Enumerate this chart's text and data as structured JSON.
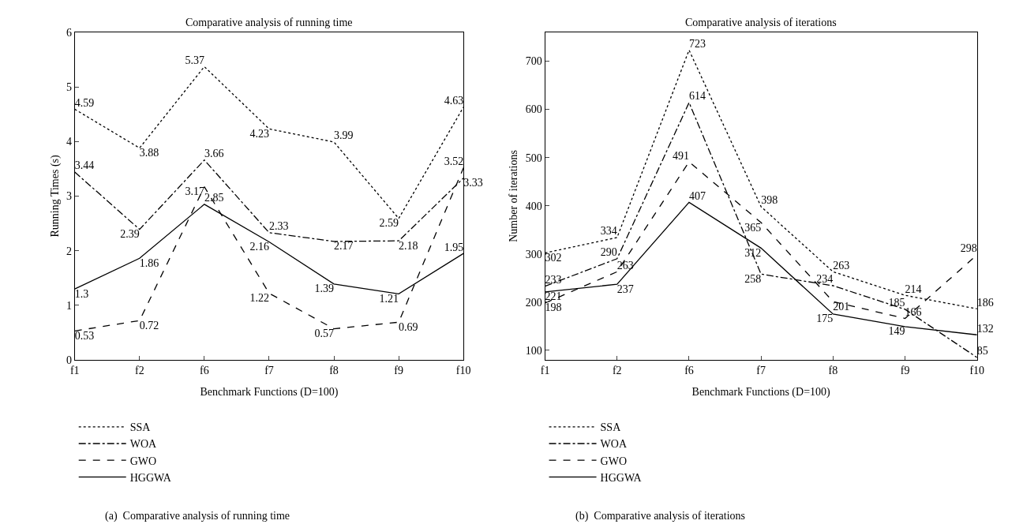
{
  "chart_data": [
    {
      "type": "line",
      "title": "Comparative analysis of running time",
      "xlabel": "Benchmark Functions (D=100)",
      "ylabel": "Running Times (s)",
      "categories": [
        "f1",
        "f2",
        "f6",
        "f7",
        "f8",
        "f9",
        "f10"
      ],
      "series": [
        {
          "name": "SSA",
          "color": "#000000",
          "line_style": "dotted",
          "values": [
            4.59,
            3.88,
            5.37,
            4.23,
            3.99,
            2.59,
            4.63
          ]
        },
        {
          "name": "WOA",
          "color": "#000000",
          "line_style": "dashdot",
          "values": [
            3.44,
            2.39,
            3.66,
            2.33,
            2.17,
            2.18,
            3.33
          ]
        },
        {
          "name": "GWO",
          "color": "#000000",
          "line_style": "dashed",
          "values": [
            0.53,
            0.72,
            3.17,
            1.22,
            0.57,
            0.69,
            3.52
          ]
        },
        {
          "name": "HGGWA",
          "color": "#000000",
          "line_style": "solid",
          "values": [
            1.3,
            1.86,
            2.85,
            2.16,
            1.39,
            1.21,
            1.95
          ]
        }
      ],
      "ylim": [
        0,
        6
      ],
      "yticks": [
        0,
        1,
        2,
        3,
        4,
        5,
        6
      ],
      "data_labels": true,
      "legend": "bottom",
      "marker": "none",
      "annotations": [
        "(a)  Comparative analysis of running time"
      ]
    },
    {
      "type": "line",
      "title": "Comparative analysis of iterations",
      "xlabel": "Benchmark Functions (D=100)",
      "ylabel": "Number of iterations",
      "categories": [
        "f1",
        "f2",
        "f6",
        "f7",
        "f8",
        "f9",
        "f10"
      ],
      "series": [
        {
          "name": "SSA",
          "color": "#000000",
          "line_style": "dotted",
          "values": [
            302,
            334,
            723,
            398,
            263,
            214,
            186
          ]
        },
        {
          "name": "WOA",
          "color": "#000000",
          "line_style": "dashdot",
          "values": [
            233,
            290,
            614,
            258,
            234,
            185,
            85
          ]
        },
        {
          "name": "GWO",
          "color": "#000000",
          "line_style": "dashed",
          "values": [
            198,
            263,
            491,
            365,
            201,
            166,
            298
          ]
        },
        {
          "name": "HGGWA",
          "color": "#000000",
          "line_style": "solid",
          "values": [
            221,
            237,
            407,
            312,
            175,
            149,
            132
          ]
        }
      ],
      "ylim": [
        80,
        760
      ],
      "yticks": [
        100,
        200,
        300,
        400,
        500,
        600,
        700
      ],
      "data_labels": true,
      "legend": "bottom",
      "marker": "none",
      "annotations": [
        "(b)  Comparative analysis of iterations"
      ]
    }
  ]
}
